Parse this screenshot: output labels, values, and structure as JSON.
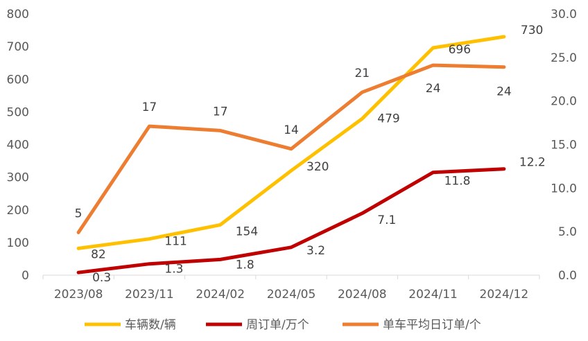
{
  "chart_data": {
    "type": "line",
    "categories": [
      "2023/08",
      "2023/11",
      "2024/02",
      "2024/05",
      "2024/08",
      "2024/11",
      "2024/12"
    ],
    "y_left": {
      "min": 0,
      "max": 800,
      "ticks": [
        "0",
        "100",
        "200",
        "300",
        "400",
        "500",
        "600",
        "700",
        "800"
      ]
    },
    "y_right": {
      "min": 0,
      "max": 30,
      "ticks": [
        "0.0",
        "5.0",
        "10.0",
        "15.0",
        "20.0",
        "25.0",
        "30.0"
      ]
    },
    "grid": false,
    "legend_position": "bottom",
    "series": [
      {
        "name": "车辆数/辆",
        "axis": "left",
        "color": "#FFC000",
        "values": [
          82,
          111,
          154,
          320,
          479,
          696,
          730
        ],
        "labels": [
          "82",
          "111",
          "154",
          "320",
          "479",
          "696",
          "730"
        ]
      },
      {
        "name": "周订单/万个",
        "axis": "right",
        "color": "#C00000",
        "values": [
          0.3,
          1.3,
          1.8,
          3.2,
          7.1,
          11.8,
          12.2
        ],
        "labels": [
          "0.3",
          "1.3",
          "1.8",
          "3.2",
          "7.1",
          "11.8",
          "12.2"
        ]
      },
      {
        "name": "单车平均日订单/个",
        "axis": "right",
        "color": "#ED7D31",
        "values": [
          4.9,
          17.1,
          16.6,
          14.5,
          21.0,
          24.1,
          23.9
        ],
        "labels": [
          "5",
          "17",
          "17",
          "14",
          "21",
          "24",
          "24"
        ]
      }
    ]
  }
}
